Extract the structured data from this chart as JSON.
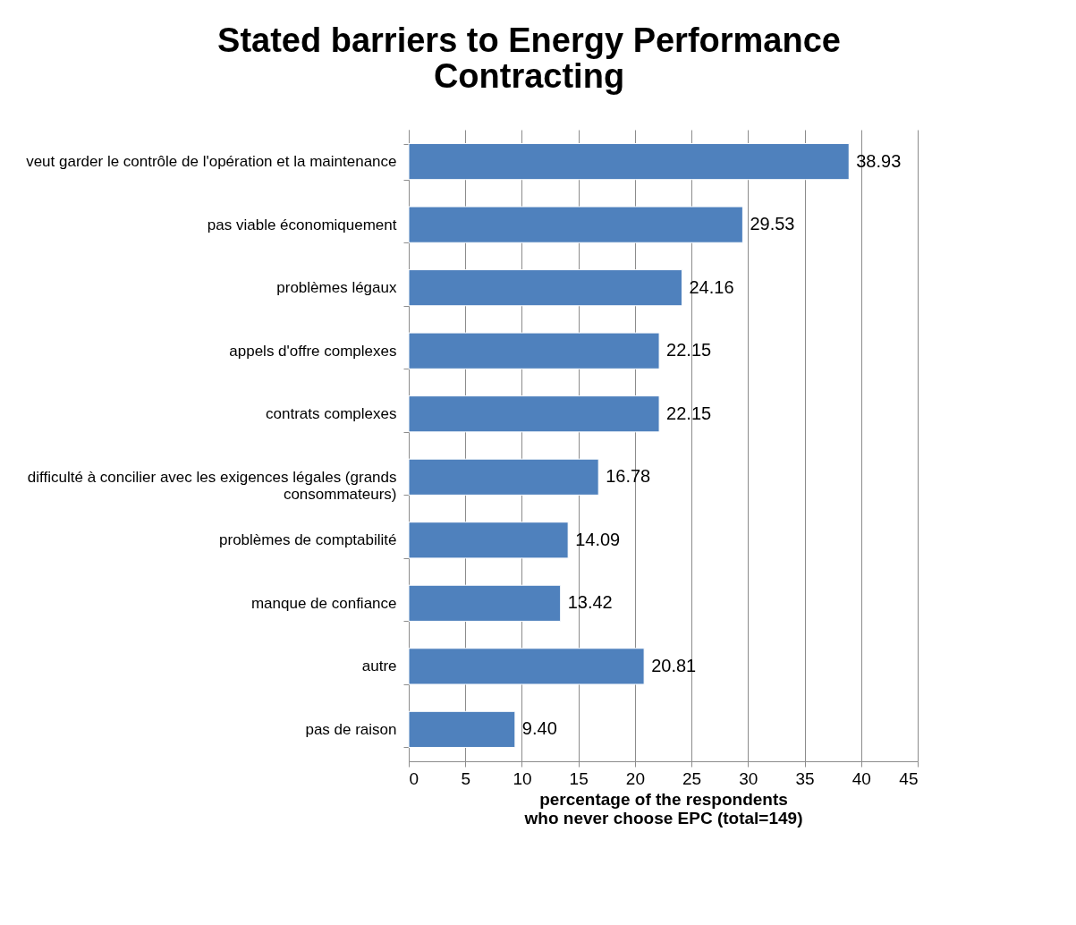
{
  "chart_data": {
    "type": "bar",
    "orientation": "horizontal",
    "title": "Stated barriers to Energy Performance Contracting",
    "xlabel": "percentage of the respondents who never choose EPC (total=149)",
    "categories": [
      "veut garder le contrôle de l'opération et la maintenance",
      "pas viable économiquement",
      "problèmes légaux",
      "appels d'offre complexes",
      "contrats complexes",
      "difficulté à concilier avec les exigences légales (grands consommateurs)",
      "problèmes de comptabilité",
      "manque de confiance",
      "autre",
      "pas de raison"
    ],
    "values": [
      38.93,
      29.53,
      24.16,
      22.15,
      22.15,
      16.78,
      14.09,
      13.42,
      20.81,
      9.4
    ],
    "value_labels": [
      "38.93",
      "29.53",
      "24.16",
      "22.15",
      "22.15",
      "16.78",
      "14.09",
      "13.42",
      "20.81",
      "9.40"
    ],
    "color": "#4f81bd",
    "xlim": [
      0,
      45
    ],
    "xticks": [
      0,
      5,
      10,
      15,
      20,
      25,
      30,
      35,
      40,
      45
    ],
    "grid": "x"
  }
}
